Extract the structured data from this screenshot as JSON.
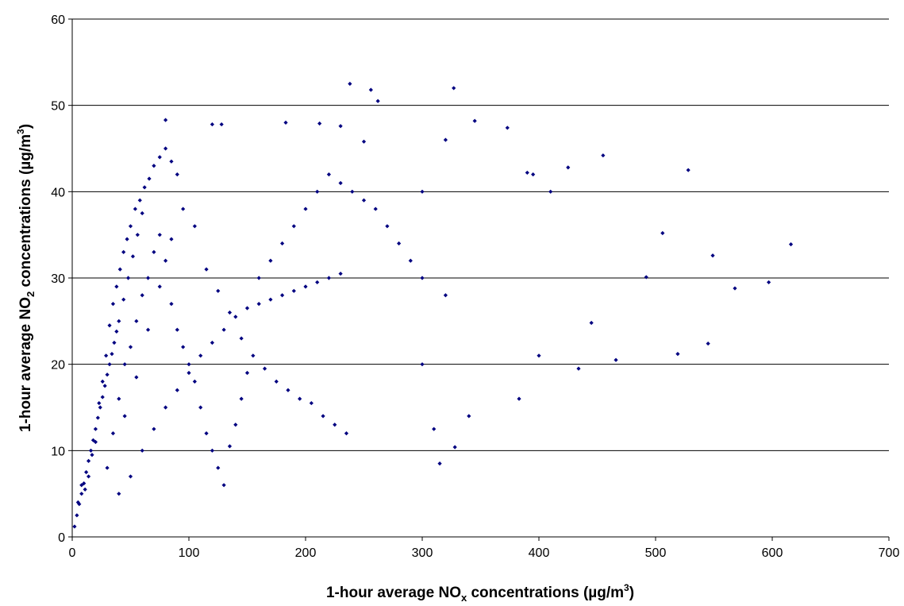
{
  "chart_data": {
    "type": "scatter",
    "title": "",
    "xlabel": {
      "main": "1-hour average NO",
      "subscript": "x",
      "suffix": " concentrations (µg/m",
      "superscript": "3",
      "close": ")"
    },
    "ylabel": {
      "main": "1-hour average NO",
      "subscript": "2",
      "suffix": " concentrations (µg/m",
      "superscript": "3",
      "close": ")"
    },
    "xlim": [
      0,
      700
    ],
    "ylim": [
      0,
      60
    ],
    "x_ticks": [
      "0",
      "100",
      "200",
      "300",
      "400",
      "500",
      "600",
      "700"
    ],
    "y_ticks": [
      "0",
      "10",
      "20",
      "30",
      "40",
      "50",
      "60"
    ],
    "grid": "horizontal",
    "legend": "none",
    "marker_color": "#000080",
    "series": [
      {
        "x": [
          2,
          4,
          6,
          8,
          10,
          12,
          14,
          16,
          18,
          20,
          22,
          24,
          26,
          28,
          30,
          32,
          34,
          36,
          38,
          40,
          44,
          48,
          52,
          56,
          60,
          5,
          8,
          11,
          14,
          17,
          20,
          23,
          26,
          29,
          32,
          35,
          38,
          41,
          44,
          47,
          50,
          54,
          58,
          62,
          66,
          70,
          75,
          80,
          85,
          90,
          30,
          35,
          40,
          45,
          50,
          55,
          60,
          65,
          70,
          75,
          80,
          85,
          90,
          95,
          100,
          105,
          110,
          115,
          120,
          125,
          130,
          135,
          140,
          145,
          150,
          45,
          55,
          65,
          75,
          85,
          95,
          105,
          115,
          125,
          135,
          145,
          155,
          165,
          175,
          185,
          195,
          205,
          215,
          225,
          235,
          40,
          50,
          60,
          70,
          80,
          90,
          100,
          110,
          120,
          130,
          140,
          150,
          160,
          170,
          180,
          190,
          200,
          210,
          220,
          230,
          160,
          170,
          180,
          190,
          200,
          210,
          220,
          230,
          240,
          250,
          260,
          270,
          280,
          290,
          300,
          238,
          256,
          262,
          327,
          345,
          373,
          455,
          528,
          549,
          568,
          597,
          616,
          506,
          492,
          466,
          445,
          434,
          425,
          519,
          545,
          80,
          120,
          128,
          183,
          212,
          230,
          250,
          300,
          320,
          390,
          395,
          410,
          300,
          320,
          340,
          310,
          315,
          328,
          383,
          400
        ],
        "y": [
          1.2,
          2.5,
          3.8,
          5.0,
          6.2,
          7.5,
          8.8,
          10.0,
          11.2,
          12.5,
          13.8,
          15.0,
          16.2,
          17.5,
          18.8,
          20.0,
          21.2,
          22.5,
          23.8,
          25.0,
          27.5,
          30.0,
          32.5,
          35.0,
          37.5,
          4.0,
          6.0,
          5.5,
          7.0,
          9.5,
          11.0,
          15.5,
          18.0,
          21.0,
          24.5,
          27.0,
          29.0,
          31.0,
          33.0,
          34.5,
          36.0,
          38.0,
          39.0,
          40.5,
          41.5,
          43.0,
          44.0,
          45.0,
          43.5,
          42.0,
          8.0,
          12.0,
          16.0,
          20.0,
          22.0,
          25.0,
          28.0,
          30.0,
          33.0,
          35.0,
          32.0,
          27.0,
          24.0,
          22.0,
          20.0,
          18.0,
          15.0,
          12.0,
          10.0,
          8.0,
          6.0,
          10.5,
          13.0,
          16.0,
          19.0,
          14.0,
          18.5,
          24.0,
          29.0,
          34.5,
          38.0,
          36.0,
          31.0,
          28.5,
          26.0,
          23.0,
          21.0,
          19.5,
          18.0,
          17.0,
          16.0,
          15.5,
          14.0,
          13.0,
          12.0,
          5.0,
          7.0,
          10.0,
          12.5,
          15.0,
          17.0,
          19.0,
          21.0,
          22.5,
          24.0,
          25.5,
          26.5,
          27.0,
          27.5,
          28.0,
          28.5,
          29.0,
          29.5,
          30.0,
          30.5,
          30.0,
          32.0,
          34.0,
          36.0,
          38.0,
          40.0,
          42.0,
          41.0,
          40.0,
          39.0,
          38.0,
          36.0,
          34.0,
          32.0,
          30.0,
          52.5,
          51.8,
          50.5,
          52.0,
          48.2,
          47.4,
          44.2,
          42.5,
          32.6,
          28.8,
          29.5,
          33.9,
          35.2,
          30.1,
          20.5,
          24.8,
          19.5,
          42.8,
          21.2,
          22.4,
          48.3,
          47.8,
          47.8,
          48.0,
          47.9,
          47.6,
          45.8,
          40.0,
          46.0,
          42.2,
          42.0,
          40.0,
          20.0,
          28.0,
          14.0,
          12.5,
          8.5,
          10.4,
          16.0,
          21.0
        ]
      }
    ]
  }
}
